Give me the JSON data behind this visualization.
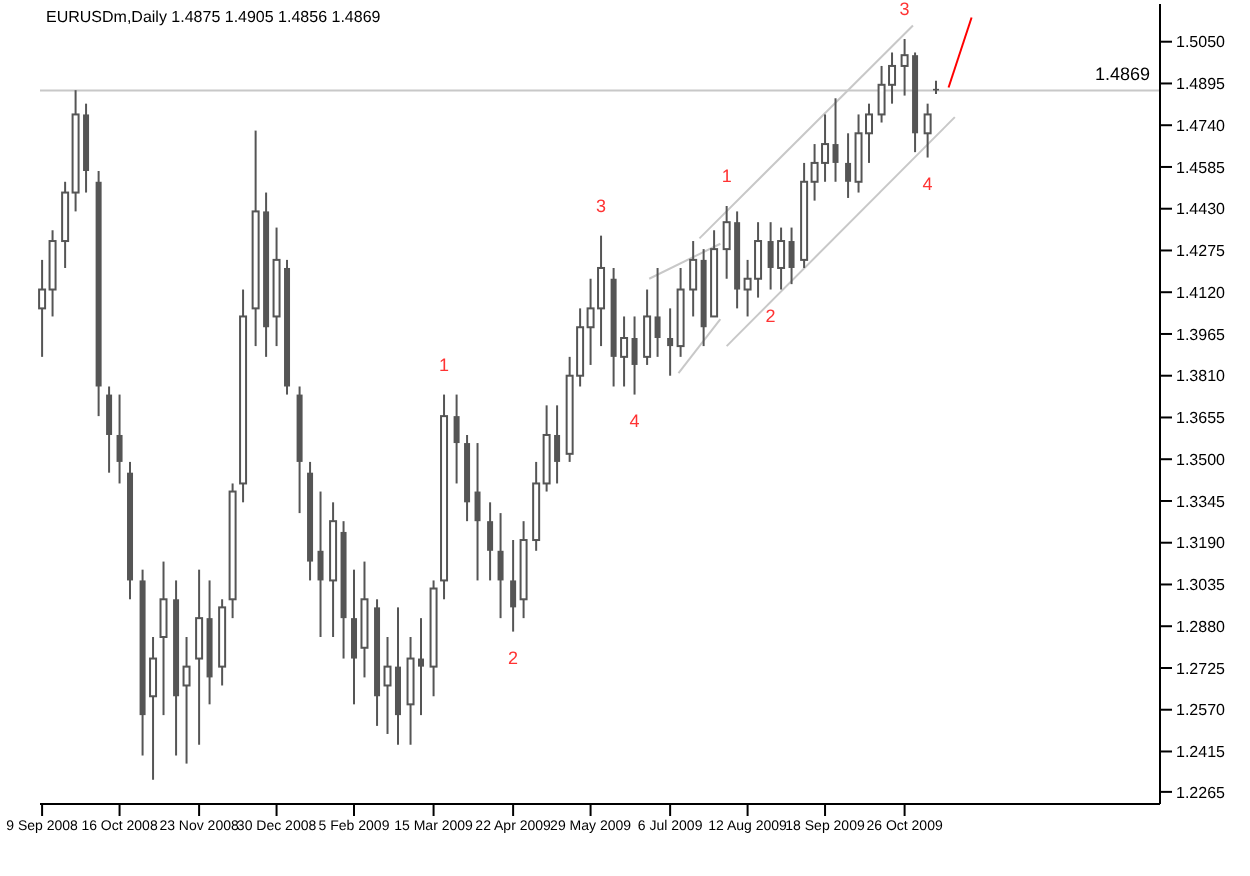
{
  "chart_data": {
    "type": "candlestick",
    "title": "EURUSDm,Daily 1.4875 1.4905 1.4856 1.4869",
    "color": "#555555",
    "x": [
      "2008-09-09",
      "2008-09-14",
      "2008-09-20",
      "2008-09-25",
      "2008-09-30",
      "2008-10-06",
      "2008-10-11",
      "2008-10-16",
      "2008-10-21",
      "2008-10-27",
      "2008-11-01",
      "2008-11-06",
      "2008-11-12",
      "2008-11-17",
      "2008-11-23",
      "2008-11-28",
      "2008-12-04",
      "2008-12-09",
      "2008-12-14",
      "2008-12-20",
      "2008-12-25",
      "2008-12-30",
      "2009-01-04",
      "2009-01-10",
      "2009-01-15",
      "2009-01-20",
      "2009-01-26",
      "2009-01-31",
      "2009-02-05",
      "2009-02-10",
      "2009-02-16",
      "2009-02-21",
      "2009-02-26",
      "2009-03-04",
      "2009-03-09",
      "2009-03-15",
      "2009-03-20",
      "2009-03-26",
      "2009-03-31",
      "2009-04-05",
      "2009-04-11",
      "2009-04-16",
      "2009-04-22",
      "2009-04-27",
      "2009-05-03",
      "2009-05-08",
      "2009-05-13",
      "2009-05-19",
      "2009-05-24",
      "2009-05-29",
      "2009-06-03",
      "2009-06-09",
      "2009-06-14",
      "2009-06-19",
      "2009-06-25",
      "2009-06-30",
      "2009-07-06",
      "2009-07-11",
      "2009-07-17",
      "2009-07-22",
      "2009-07-27",
      "2009-08-02",
      "2009-08-07",
      "2009-08-12",
      "2009-08-17",
      "2009-08-23",
      "2009-08-28",
      "2009-09-02",
      "2009-09-08",
      "2009-09-13",
      "2009-09-18",
      "2009-09-23",
      "2009-09-29",
      "2009-10-04",
      "2009-10-09",
      "2009-10-15",
      "2009-10-20",
      "2009-10-26",
      "2009-10-31",
      "2009-11-06",
      "2009-11-10"
    ],
    "ohlc": [
      [
        1.406,
        1.424,
        1.388,
        1.413
      ],
      [
        1.413,
        1.435,
        1.403,
        1.431
      ],
      [
        1.431,
        1.453,
        1.421,
        1.449
      ],
      [
        1.449,
        1.487,
        1.442,
        1.478
      ],
      [
        1.478,
        1.482,
        1.449,
        1.457
      ],
      [
        1.453,
        1.457,
        1.366,
        1.377
      ],
      [
        1.374,
        1.377,
        1.345,
        1.359
      ],
      [
        1.359,
        1.374,
        1.341,
        1.349
      ],
      [
        1.345,
        1.349,
        1.298,
        1.305
      ],
      [
        1.305,
        1.309,
        1.24,
        1.255
      ],
      [
        1.262,
        1.284,
        1.231,
        1.276
      ],
      [
        1.284,
        1.312,
        1.255,
        1.298
      ],
      [
        1.298,
        1.305,
        1.24,
        1.262
      ],
      [
        1.266,
        1.284,
        1.237,
        1.273
      ],
      [
        1.276,
        1.309,
        1.244,
        1.291
      ],
      [
        1.291,
        1.305,
        1.259,
        1.269
      ],
      [
        1.273,
        1.298,
        1.266,
        1.295
      ],
      [
        1.298,
        1.341,
        1.291,
        1.338
      ],
      [
        1.341,
        1.413,
        1.334,
        1.403
      ],
      [
        1.406,
        1.472,
        1.392,
        1.442
      ],
      [
        1.442,
        1.449,
        1.388,
        1.399
      ],
      [
        1.403,
        1.436,
        1.392,
        1.424
      ],
      [
        1.421,
        1.424,
        1.374,
        1.377
      ],
      [
        1.374,
        1.377,
        1.33,
        1.349
      ],
      [
        1.345,
        1.349,
        1.305,
        1.312
      ],
      [
        1.316,
        1.338,
        1.284,
        1.305
      ],
      [
        1.305,
        1.334,
        1.284,
        1.327
      ],
      [
        1.323,
        1.327,
        1.276,
        1.291
      ],
      [
        1.291,
        1.309,
        1.259,
        1.276
      ],
      [
        1.28,
        1.312,
        1.269,
        1.298
      ],
      [
        1.295,
        1.298,
        1.251,
        1.262
      ],
      [
        1.266,
        1.284,
        1.248,
        1.273
      ],
      [
        1.273,
        1.295,
        1.244,
        1.255
      ],
      [
        1.259,
        1.284,
        1.244,
        1.276
      ],
      [
        1.276,
        1.291,
        1.255,
        1.273
      ],
      [
        1.273,
        1.305,
        1.262,
        1.302
      ],
      [
        1.305,
        1.374,
        1.298,
        1.366
      ],
      [
        1.366,
        1.374,
        1.341,
        1.356
      ],
      [
        1.356,
        1.359,
        1.327,
        1.334
      ],
      [
        1.338,
        1.356,
        1.305,
        1.327
      ],
      [
        1.327,
        1.334,
        1.305,
        1.316
      ],
      [
        1.316,
        1.33,
        1.291,
        1.305
      ],
      [
        1.305,
        1.32,
        1.286,
        1.295
      ],
      [
        1.298,
        1.327,
        1.291,
        1.32
      ],
      [
        1.32,
        1.349,
        1.316,
        1.341
      ],
      [
        1.341,
        1.37,
        1.338,
        1.359
      ],
      [
        1.359,
        1.37,
        1.341,
        1.349
      ],
      [
        1.352,
        1.388,
        1.349,
        1.381
      ],
      [
        1.381,
        1.406,
        1.377,
        1.399
      ],
      [
        1.399,
        1.417,
        1.385,
        1.406
      ],
      [
        1.406,
        1.433,
        1.392,
        1.421
      ],
      [
        1.417,
        1.421,
        1.377,
        1.388
      ],
      [
        1.388,
        1.403,
        1.377,
        1.395
      ],
      [
        1.395,
        1.403,
        1.374,
        1.385
      ],
      [
        1.388,
        1.413,
        1.385,
        1.403
      ],
      [
        1.403,
        1.421,
        1.388,
        1.395
      ],
      [
        1.395,
        1.406,
        1.381,
        1.392
      ],
      [
        1.392,
        1.421,
        1.388,
        1.413
      ],
      [
        1.413,
        1.431,
        1.403,
        1.424
      ],
      [
        1.424,
        1.428,
        1.392,
        1.399
      ],
      [
        1.403,
        1.435,
        1.403,
        1.428
      ],
      [
        1.428,
        1.444,
        1.417,
        1.438
      ],
      [
        1.438,
        1.442,
        1.406,
        1.413
      ],
      [
        1.413,
        1.424,
        1.403,
        1.417
      ],
      [
        1.417,
        1.438,
        1.41,
        1.431
      ],
      [
        1.431,
        1.438,
        1.413,
        1.421
      ],
      [
        1.421,
        1.436,
        1.413,
        1.431
      ],
      [
        1.431,
        1.436,
        1.415,
        1.421
      ],
      [
        1.424,
        1.46,
        1.421,
        1.453
      ],
      [
        1.453,
        1.467,
        1.446,
        1.46
      ],
      [
        1.46,
        1.478,
        1.453,
        1.467
      ],
      [
        1.467,
        1.484,
        1.453,
        1.46
      ],
      [
        1.46,
        1.471,
        1.447,
        1.453
      ],
      [
        1.453,
        1.478,
        1.449,
        1.471
      ],
      [
        1.471,
        1.482,
        1.46,
        1.478
      ],
      [
        1.478,
        1.496,
        1.475,
        1.489
      ],
      [
        1.489,
        1.501,
        1.482,
        1.496
      ],
      [
        1.496,
        1.506,
        1.485,
        1.5
      ],
      [
        1.5,
        1.501,
        1.464,
        1.471
      ],
      [
        1.471,
        1.482,
        1.462,
        1.478
      ],
      [
        1.4875,
        1.4905,
        1.4856,
        1.4869
      ]
    ],
    "series": [
      {
        "type": "line",
        "color": "#c8c8c8",
        "x": [
          "2009-06-26",
          "2009-07-30"
        ],
        "values": [
          1.417,
          1.43
        ]
      },
      {
        "type": "line",
        "color": "#c8c8c8",
        "x": [
          "2009-07-10",
          "2009-07-30"
        ],
        "values": [
          1.382,
          1.402
        ]
      },
      {
        "type": "line",
        "color": "#c8c8c8",
        "x": [
          "2009-07-20",
          "2009-10-30"
        ],
        "values": [
          1.432,
          1.511
        ]
      },
      {
        "type": "line",
        "color": "#c8c8c8",
        "x": [
          "2009-08-02",
          "2009-11-19"
        ],
        "values": [
          1.392,
          1.477
        ]
      },
      {
        "type": "line",
        "color": "#ff0000",
        "x": [
          "2009-11-16",
          "2009-11-27"
        ],
        "values": [
          1.488,
          1.514
        ]
      }
    ],
    "marker": "none",
    "line_style": "solid",
    "xlim": [
      "2008-09-08",
      "2010-02-25"
    ],
    "xticks": [
      {
        "value": "2008-09-09",
        "label": "9 Sep 2008"
      },
      {
        "value": "2008-10-16",
        "label": "16 Oct 2008"
      },
      {
        "value": "2008-11-23",
        "label": "23 Nov 2008"
      },
      {
        "value": "2008-12-30",
        "label": "30 Dec 2008"
      },
      {
        "value": "2009-02-05",
        "label": "5 Feb 2009"
      },
      {
        "value": "2009-03-15",
        "label": "15 Mar 2009"
      },
      {
        "value": "2009-04-22",
        "label": "22 Apr 2009"
      },
      {
        "value": "2009-05-29",
        "label": "29 May 2009"
      },
      {
        "value": "2009-07-06",
        "label": "6 Jul 2009"
      },
      {
        "value": "2009-08-12",
        "label": "12 Aug 2009"
      },
      {
        "value": "2009-09-18",
        "label": "18 Sep 2009"
      },
      {
        "value": "2009-10-26",
        "label": "26 Oct 2009"
      }
    ],
    "ylim": [
      1.222,
      1.519
    ],
    "yticks": [
      1.2265,
      1.2415,
      {
        "value": 1.257,
        "label": "1.2570"
      },
      1.2725,
      {
        "value": 1.288,
        "label": "1.2880"
      },
      1.3035,
      {
        "value": 1.319,
        "label": "1.3190"
      },
      1.3345,
      {
        "value": 1.35,
        "label": "1.3500"
      },
      1.3655,
      {
        "value": 1.381,
        "label": "1.3810"
      },
      1.3965,
      {
        "value": 1.412,
        "label": "1.4120"
      },
      1.4275,
      {
        "value": 1.443,
        "label": "1.4430"
      },
      1.4585,
      {
        "value": 1.474,
        "label": "1.4740"
      },
      1.4895,
      {
        "value": 1.505,
        "label": "1.5050"
      }
    ],
    "ref_lines": [
      {
        "axis": "y",
        "value": 1.4869,
        "label": "1.4869",
        "color": "#c8c8c8"
      }
    ],
    "annotations": [
      {
        "text": "1",
        "x": "2009-03-20",
        "y": 1.374
      },
      {
        "text": "2",
        "x": "2009-04-22",
        "y": 1.286
      },
      {
        "text": "3",
        "x": "2009-06-03",
        "y": 1.433
      },
      {
        "text": "4",
        "x": "2009-06-19",
        "y": 1.374
      },
      {
        "text": "1",
        "x": "2009-08-02",
        "y": 1.444
      },
      {
        "text": "2",
        "x": "2009-08-23",
        "y": 1.413
      },
      {
        "text": "3",
        "x": "2009-10-26",
        "y": 1.506
      },
      {
        "text": "4",
        "x": "2009-11-06",
        "y": 1.462
      }
    ]
  }
}
